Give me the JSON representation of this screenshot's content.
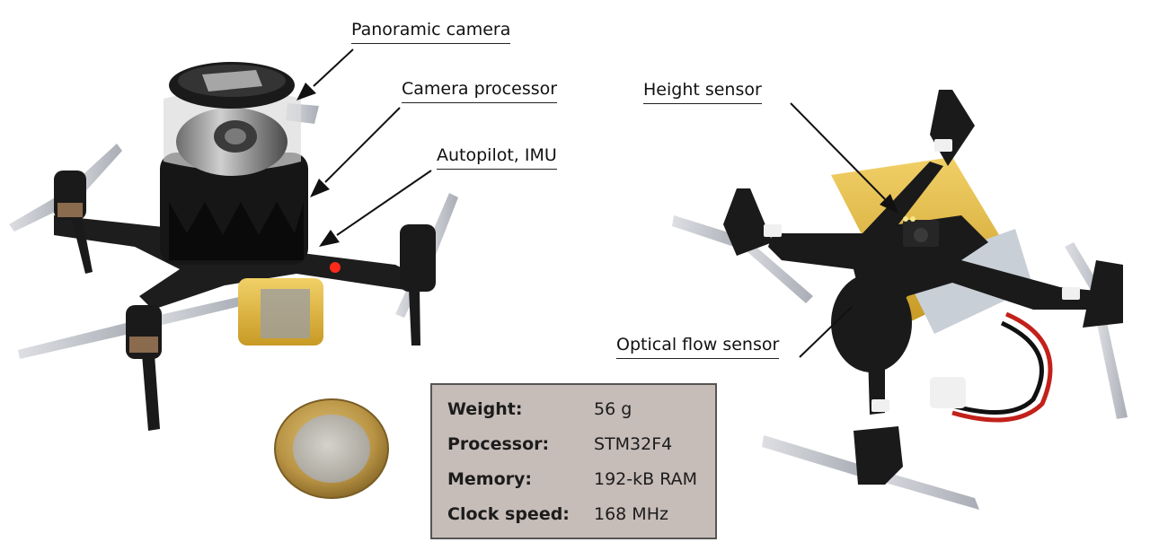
{
  "annotations": {
    "panoramic_camera": "Panoramic camera",
    "camera_processor": "Camera processor",
    "autopilot_imu": "Autopilot, IMU",
    "height_sensor": "Height sensor",
    "optical_flow_sensor": "Optical flow sensor"
  },
  "specs": [
    {
      "label": "Weight:",
      "value": "56 g"
    },
    {
      "label": "Processor:",
      "value": "STM32F4"
    },
    {
      "label": "Memory:",
      "value": "192-kB RAM"
    },
    {
      "label": "Clock speed:",
      "value": "168 MHz"
    }
  ],
  "colors": {
    "spec_box_bg": "#c6bcb8",
    "pcb": "#1f1f1f",
    "battery": "#e7c24a",
    "coin_gold": "#c9a552",
    "propeller": "#b9bcc4"
  }
}
